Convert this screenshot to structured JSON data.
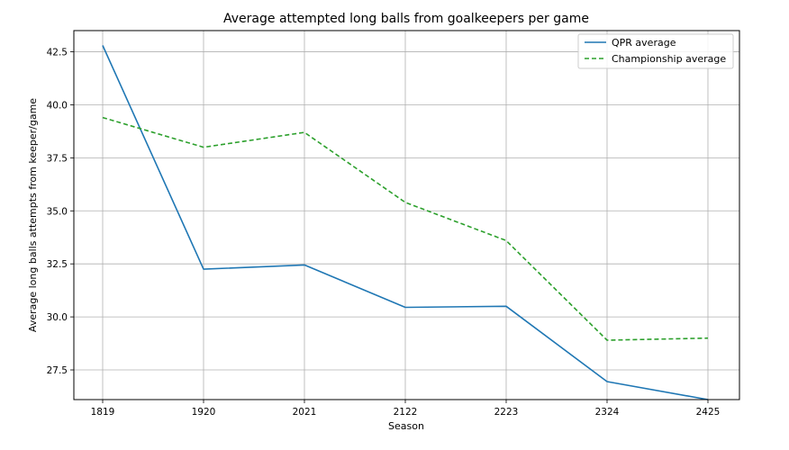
{
  "chart_data": {
    "type": "line",
    "title": "Average attempted long balls from goalkeepers per game",
    "xlabel": "Season",
    "ylabel": "Average long balls attempts from keeper/game",
    "categories": [
      "1819",
      "1920",
      "2021",
      "2122",
      "2223",
      "2324",
      "2425"
    ],
    "yticks": [
      "27.5",
      "30.0",
      "32.5",
      "35.0",
      "37.5",
      "40.0",
      "42.5"
    ],
    "ylim": [
      26.1,
      43.5
    ],
    "grid": true,
    "legend_position": "top-right",
    "series": [
      {
        "name": "QPR average",
        "color": "#1f77b4",
        "style": "solid",
        "values": [
          42.8,
          32.25,
          32.45,
          30.45,
          30.5,
          26.95,
          26.1
        ]
      },
      {
        "name": "Championship average",
        "color": "#2ca02c",
        "style": "dashed",
        "values": [
          39.4,
          38.0,
          38.7,
          35.4,
          33.6,
          28.9,
          29.0
        ]
      }
    ]
  }
}
